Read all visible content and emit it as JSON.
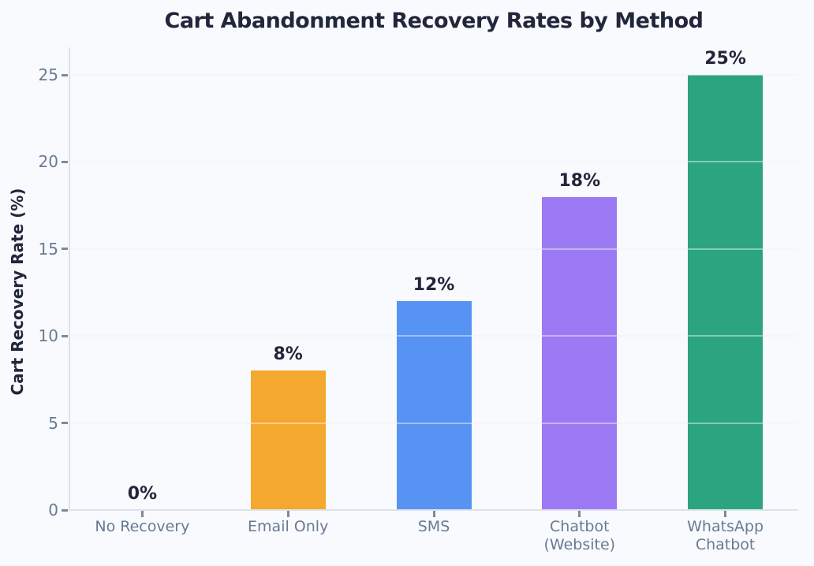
{
  "chart_data": {
    "type": "bar",
    "title": "Cart Abandonment Recovery Rates by Method",
    "xlabel": "",
    "ylabel": "Cart Recovery Rate (%)",
    "categories": [
      "No Recovery",
      "Email Only",
      "SMS",
      "Chatbot\n(Website)",
      "WhatsApp\nChatbot"
    ],
    "values": [
      0,
      8,
      12,
      18,
      25
    ],
    "data_labels": [
      "0%",
      "8%",
      "12%",
      "18%",
      "25%"
    ],
    "bar_colors": [
      "#9aa3b2",
      "#f5a82e",
      "#5793f2",
      "#9c7af3",
      "#2ca57e"
    ],
    "yticks": [
      0,
      5,
      10,
      15,
      20,
      25
    ],
    "ytick_labels": [
      "0",
      "5",
      "10",
      "15",
      "20",
      "25"
    ],
    "ylim": [
      0,
      26.6
    ],
    "grid": true,
    "legend": null,
    "colors": {
      "background": "#f8fafd",
      "title_text": "#21263b",
      "axis_tick_text": "#697a93",
      "gridline": "#eceff5",
      "spine": "#dde2eb"
    }
  }
}
